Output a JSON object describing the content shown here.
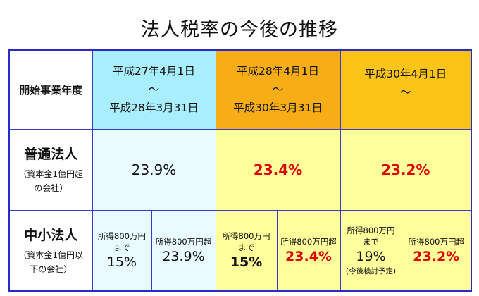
{
  "title": "法人税率の今後の推移",
  "header": {
    "label": "開始事業年度",
    "periods": [
      {
        "start": "平成27年4月1日",
        "tilde": "〜",
        "end": "平成28年3月31日"
      },
      {
        "start": "平成28年4月1日",
        "tilde": "〜",
        "end": "平成30年3月31日"
      },
      {
        "start": "平成30年4月1日",
        "tilde": "〜",
        "end": ""
      }
    ]
  },
  "ordinary": {
    "label": "普通法人",
    "note_line1": "（資本金1億円超",
    "note_line2": "の会社）",
    "rates": [
      "23.9%",
      "23.4%",
      "23.2%"
    ]
  },
  "sme": {
    "label": "中小法人",
    "note_line1": "（資本金1億円以",
    "note_line2": "下の会社）",
    "cells": [
      {
        "cap1": "所得800万円",
        "cap2": "まで",
        "value": "15%",
        "note": ""
      },
      {
        "cap1": "所得800万円超",
        "cap2": "",
        "value": "23.9%",
        "note": ""
      },
      {
        "cap1": "所得800万円",
        "cap2": "まで",
        "value": "15%",
        "note": ""
      },
      {
        "cap1": "所得800万円超",
        "cap2": "",
        "value": "23.4%",
        "note": ""
      },
      {
        "cap1": "所得800万円",
        "cap2": "まで",
        "value": "19%",
        "note": "(今後検討予定)"
      },
      {
        "cap1": "所得800万円超",
        "cap2": "",
        "value": "23.2%",
        "note": ""
      }
    ]
  },
  "colors": {
    "border": "#2a2ac8",
    "period1": "#a9eefc",
    "period2": "#f7ad16",
    "period3": "#fbc416",
    "cell1": "#e9fbff",
    "cell23": "#ffff9c",
    "highlight_text": "#e00000"
  }
}
